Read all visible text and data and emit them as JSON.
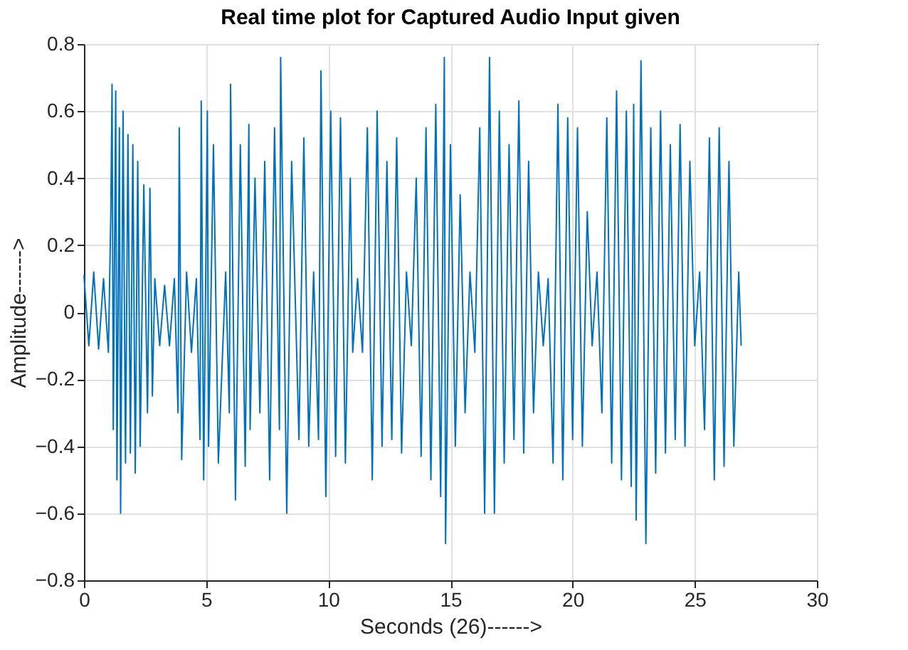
{
  "chart_data": {
    "type": "line",
    "title": "Real time plot for Captured Audio Input given",
    "xlabel": "Seconds (26)------>",
    "ylabel": "Amplitude------>",
    "x": [
      0,
      0.2,
      0.4,
      0.6,
      0.8,
      1.0,
      1.1,
      1.15,
      1.2,
      1.3,
      1.35,
      1.45,
      1.5,
      1.6,
      1.7,
      1.8,
      1.9,
      2.0,
      2.1,
      2.2,
      2.3,
      2.45,
      2.6,
      2.7,
      2.8,
      2.9,
      3.1,
      3.3,
      3.5,
      3.7,
      3.85,
      3.9,
      4.0,
      4.2,
      4.4,
      4.6,
      4.75,
      4.8,
      4.9,
      5.05,
      5.1,
      5.3,
      5.5,
      5.8,
      5.95,
      6.0,
      6.2,
      6.4,
      6.6,
      6.75,
      6.8,
      7.0,
      7.2,
      7.4,
      7.6,
      7.8,
      8.0,
      8.05,
      8.3,
      8.5,
      8.8,
      9.0,
      9.2,
      9.4,
      9.6,
      9.7,
      9.9,
      10.1,
      10.3,
      10.5,
      10.7,
      10.9,
      11.0,
      11.2,
      11.4,
      11.6,
      11.8,
      12.0,
      12.2,
      12.4,
      12.6,
      12.8,
      13.0,
      13.2,
      13.4,
      13.6,
      13.8,
      14.0,
      14.2,
      14.4,
      14.6,
      14.75,
      14.8,
      15.0,
      15.2,
      15.4,
      15.6,
      15.8,
      16.0,
      16.2,
      16.4,
      16.6,
      16.8,
      17.0,
      17.2,
      17.4,
      17.6,
      17.8,
      18.0,
      18.2,
      18.4,
      18.6,
      18.8,
      19.0,
      19.2,
      19.4,
      19.6,
      19.8,
      20.0,
      20.2,
      20.4,
      20.6,
      20.8,
      21.0,
      21.2,
      21.4,
      21.6,
      21.8,
      22.0,
      22.2,
      22.4,
      22.5,
      22.6,
      22.8,
      23.0,
      23.2,
      23.4,
      23.6,
      23.8,
      24.0,
      24.2,
      24.4,
      24.6,
      24.8,
      25.0,
      25.2,
      25.4,
      25.6,
      25.8,
      26.0,
      26.2,
      26.4,
      26.6,
      26.8,
      26.9
    ],
    "series": [
      {
        "color": "#0072bd",
        "values": [
          0.11,
          -0.1,
          0.12,
          -0.11,
          0.1,
          -0.12,
          0.3,
          0.68,
          -0.35,
          0.66,
          -0.5,
          0.55,
          -0.6,
          0.6,
          -0.45,
          0.53,
          -0.42,
          0.5,
          -0.48,
          0.45,
          -0.4,
          0.38,
          -0.3,
          0.37,
          -0.25,
          0.1,
          -0.1,
          0.08,
          -0.1,
          0.1,
          -0.3,
          0.55,
          -0.44,
          0.12,
          -0.12,
          0.1,
          -0.38,
          0.63,
          -0.5,
          0.6,
          -0.4,
          0.5,
          -0.45,
          0.12,
          -0.3,
          0.68,
          -0.56,
          0.5,
          -0.46,
          0.56,
          -0.35,
          0.4,
          -0.3,
          0.45,
          -0.5,
          0.55,
          -0.35,
          0.76,
          -0.6,
          0.45,
          -0.38,
          0.52,
          -0.4,
          0.12,
          -0.38,
          0.72,
          -0.55,
          0.6,
          -0.43,
          0.58,
          -0.45,
          0.4,
          -0.12,
          0.1,
          -0.12,
          0.55,
          -0.5,
          0.6,
          -0.4,
          0.45,
          -0.38,
          0.52,
          -0.42,
          0.12,
          -0.1,
          0.4,
          -0.43,
          0.55,
          -0.5,
          0.62,
          -0.55,
          0.76,
          -0.69,
          0.5,
          -0.4,
          0.35,
          -0.3,
          0.12,
          -0.12,
          0.55,
          -0.6,
          0.76,
          -0.6,
          0.6,
          -0.45,
          0.5,
          -0.38,
          0.63,
          -0.42,
          0.45,
          -0.3,
          0.12,
          -0.1,
          0.1,
          -0.45,
          0.62,
          -0.5,
          0.58,
          -0.38,
          0.55,
          -0.4,
          0.3,
          -0.1,
          0.12,
          -0.3,
          0.58,
          -0.45,
          0.66,
          -0.5,
          0.6,
          -0.52,
          0.62,
          -0.62,
          0.75,
          -0.69,
          0.55,
          -0.48,
          0.6,
          -0.42,
          0.5,
          -0.38,
          0.56,
          -0.4,
          0.45,
          -0.1,
          0.12,
          -0.35,
          0.52,
          -0.5,
          0.55,
          -0.46,
          0.45,
          -0.4,
          0.12,
          -0.1
        ]
      }
    ],
    "xlim": [
      0,
      30
    ],
    "xticks": [
      0,
      5,
      10,
      15,
      20,
      25,
      30
    ],
    "ylim": [
      -0.8,
      0.8
    ],
    "yticks": [
      -0.8,
      -0.6,
      -0.4,
      -0.2,
      0,
      0.2,
      0.4,
      0.6,
      0.8
    ],
    "grid": true,
    "line_style": "solid"
  }
}
